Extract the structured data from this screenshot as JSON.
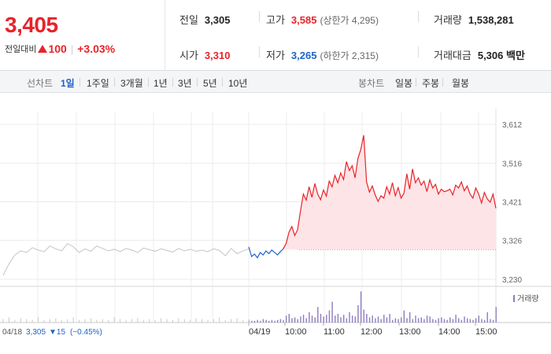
{
  "summary": {
    "current_price": "3,405",
    "change_label": "전일대비",
    "change_value": "100",
    "change_rate": "+3.03%",
    "prev_close_label": "전일",
    "prev_close": "3,305",
    "open_label": "시가",
    "open": "3,310",
    "high_label": "고가",
    "high": "3,585",
    "upper_limit": "(상한가 4,295)",
    "low_label": "저가",
    "low": "3,265",
    "lower_limit": "(하한가 2,315)",
    "volume_label": "거래량",
    "volume": "1,538,281",
    "amount_label": "거래대금",
    "amount": "5,306 백만"
  },
  "toolbar": {
    "line_chart_label": "선차트",
    "periods": [
      "1일",
      "1주일",
      "3개월",
      "1년",
      "3년",
      "5년",
      "10년"
    ],
    "active_period": "1일",
    "candle_chart_label": "봉차트",
    "candle_periods": [
      "일봉",
      "주봉",
      "월봉"
    ]
  },
  "colors": {
    "up": "#e8232a",
    "down": "#1e64c8",
    "prev_day_line": "#c4c4c4",
    "area_fill": "#fde4e6",
    "volume_bar": "#8f7bbf",
    "grid": "#ececec"
  },
  "chart_data": {
    "type": "line",
    "y_ticks": [
      "3,612",
      "3,516",
      "3,421",
      "3,326",
      "3,230"
    ],
    "y_tick_values": [
      3612,
      3516,
      3421,
      3326,
      3230
    ],
    "ylim": [
      3230,
      3612
    ],
    "baseline_prev_close": 3305,
    "x_labels": [
      "04/19",
      "10:00",
      "11:00",
      "12:00",
      "13:00",
      "14:00",
      "15:00"
    ],
    "volume_legend": "거래량",
    "grid": true,
    "prev_day": {
      "date_label": "04/18",
      "close_label": "3,305",
      "change_label": "▼15",
      "change_rate_label": "(−0.45%)",
      "prices": [
        3240,
        3268,
        3290,
        3300,
        3296,
        3308,
        3302,
        3298,
        3312,
        3305,
        3300,
        3318,
        3310,
        3296,
        3305,
        3299,
        3312,
        3306,
        3300,
        3304,
        3298,
        3306,
        3302,
        3296,
        3307,
        3303,
        3299,
        3305,
        3301,
        3297,
        3306,
        3300,
        3304,
        3299,
        3302,
        3298,
        3305,
        3301,
        3288,
        3306,
        3293,
        3300,
        3305
      ]
    },
    "today": {
      "prices": [
        3310,
        3286,
        3292,
        3283,
        3296,
        3290,
        3300,
        3293,
        3302,
        3296,
        3290,
        3298,
        3305,
        3318,
        3346,
        3360,
        3338,
        3352,
        3398,
        3440,
        3425,
        3458,
        3432,
        3466,
        3440,
        3426,
        3450,
        3435,
        3472,
        3458,
        3486,
        3468,
        3492,
        3476,
        3520,
        3498,
        3510,
        3480,
        3528,
        3550,
        3585,
        3470,
        3445,
        3460,
        3438,
        3422,
        3436,
        3430,
        3458,
        3440,
        3468,
        3436,
        3456,
        3430,
        3442,
        3490,
        3452,
        3502,
        3468,
        3480,
        3462,
        3472,
        3446,
        3475,
        3455,
        3464,
        3440,
        3452,
        3446,
        3448,
        3452,
        3438,
        3462,
        3455,
        3470,
        3448,
        3460,
        3440,
        3430,
        3455,
        3440,
        3418,
        3444,
        3428,
        3420,
        3440,
        3405
      ]
    },
    "volume_today": [
      3,
      2,
      2,
      3,
      2,
      4,
      3,
      2,
      3,
      2,
      3,
      4,
      3,
      8,
      10,
      5,
      6,
      4,
      7,
      9,
      5,
      12,
      8,
      6,
      18,
      10,
      7,
      9,
      14,
      24,
      8,
      10,
      6,
      9,
      5,
      12,
      8,
      7,
      20,
      36,
      15,
      10,
      6,
      8,
      5,
      7,
      4,
      9,
      6,
      10,
      3,
      5,
      4,
      6,
      14,
      5,
      12,
      4,
      8,
      5,
      6,
      4,
      8,
      7,
      4,
      3,
      5,
      6,
      4,
      3,
      6,
      4,
      9,
      5,
      3,
      7,
      5,
      4,
      3,
      5,
      8,
      4,
      3,
      12,
      4,
      3,
      18
    ],
    "volume_prev_day": [
      4,
      6,
      3,
      5,
      4,
      3,
      6,
      3,
      4,
      5,
      3,
      4,
      6,
      3,
      4,
      5,
      3,
      4,
      3,
      6,
      4,
      3,
      4,
      5,
      3,
      4,
      3,
      5,
      4,
      3,
      5,
      4,
      3,
      5,
      4,
      3,
      4,
      6,
      3,
      4,
      5,
      3,
      4
    ]
  }
}
